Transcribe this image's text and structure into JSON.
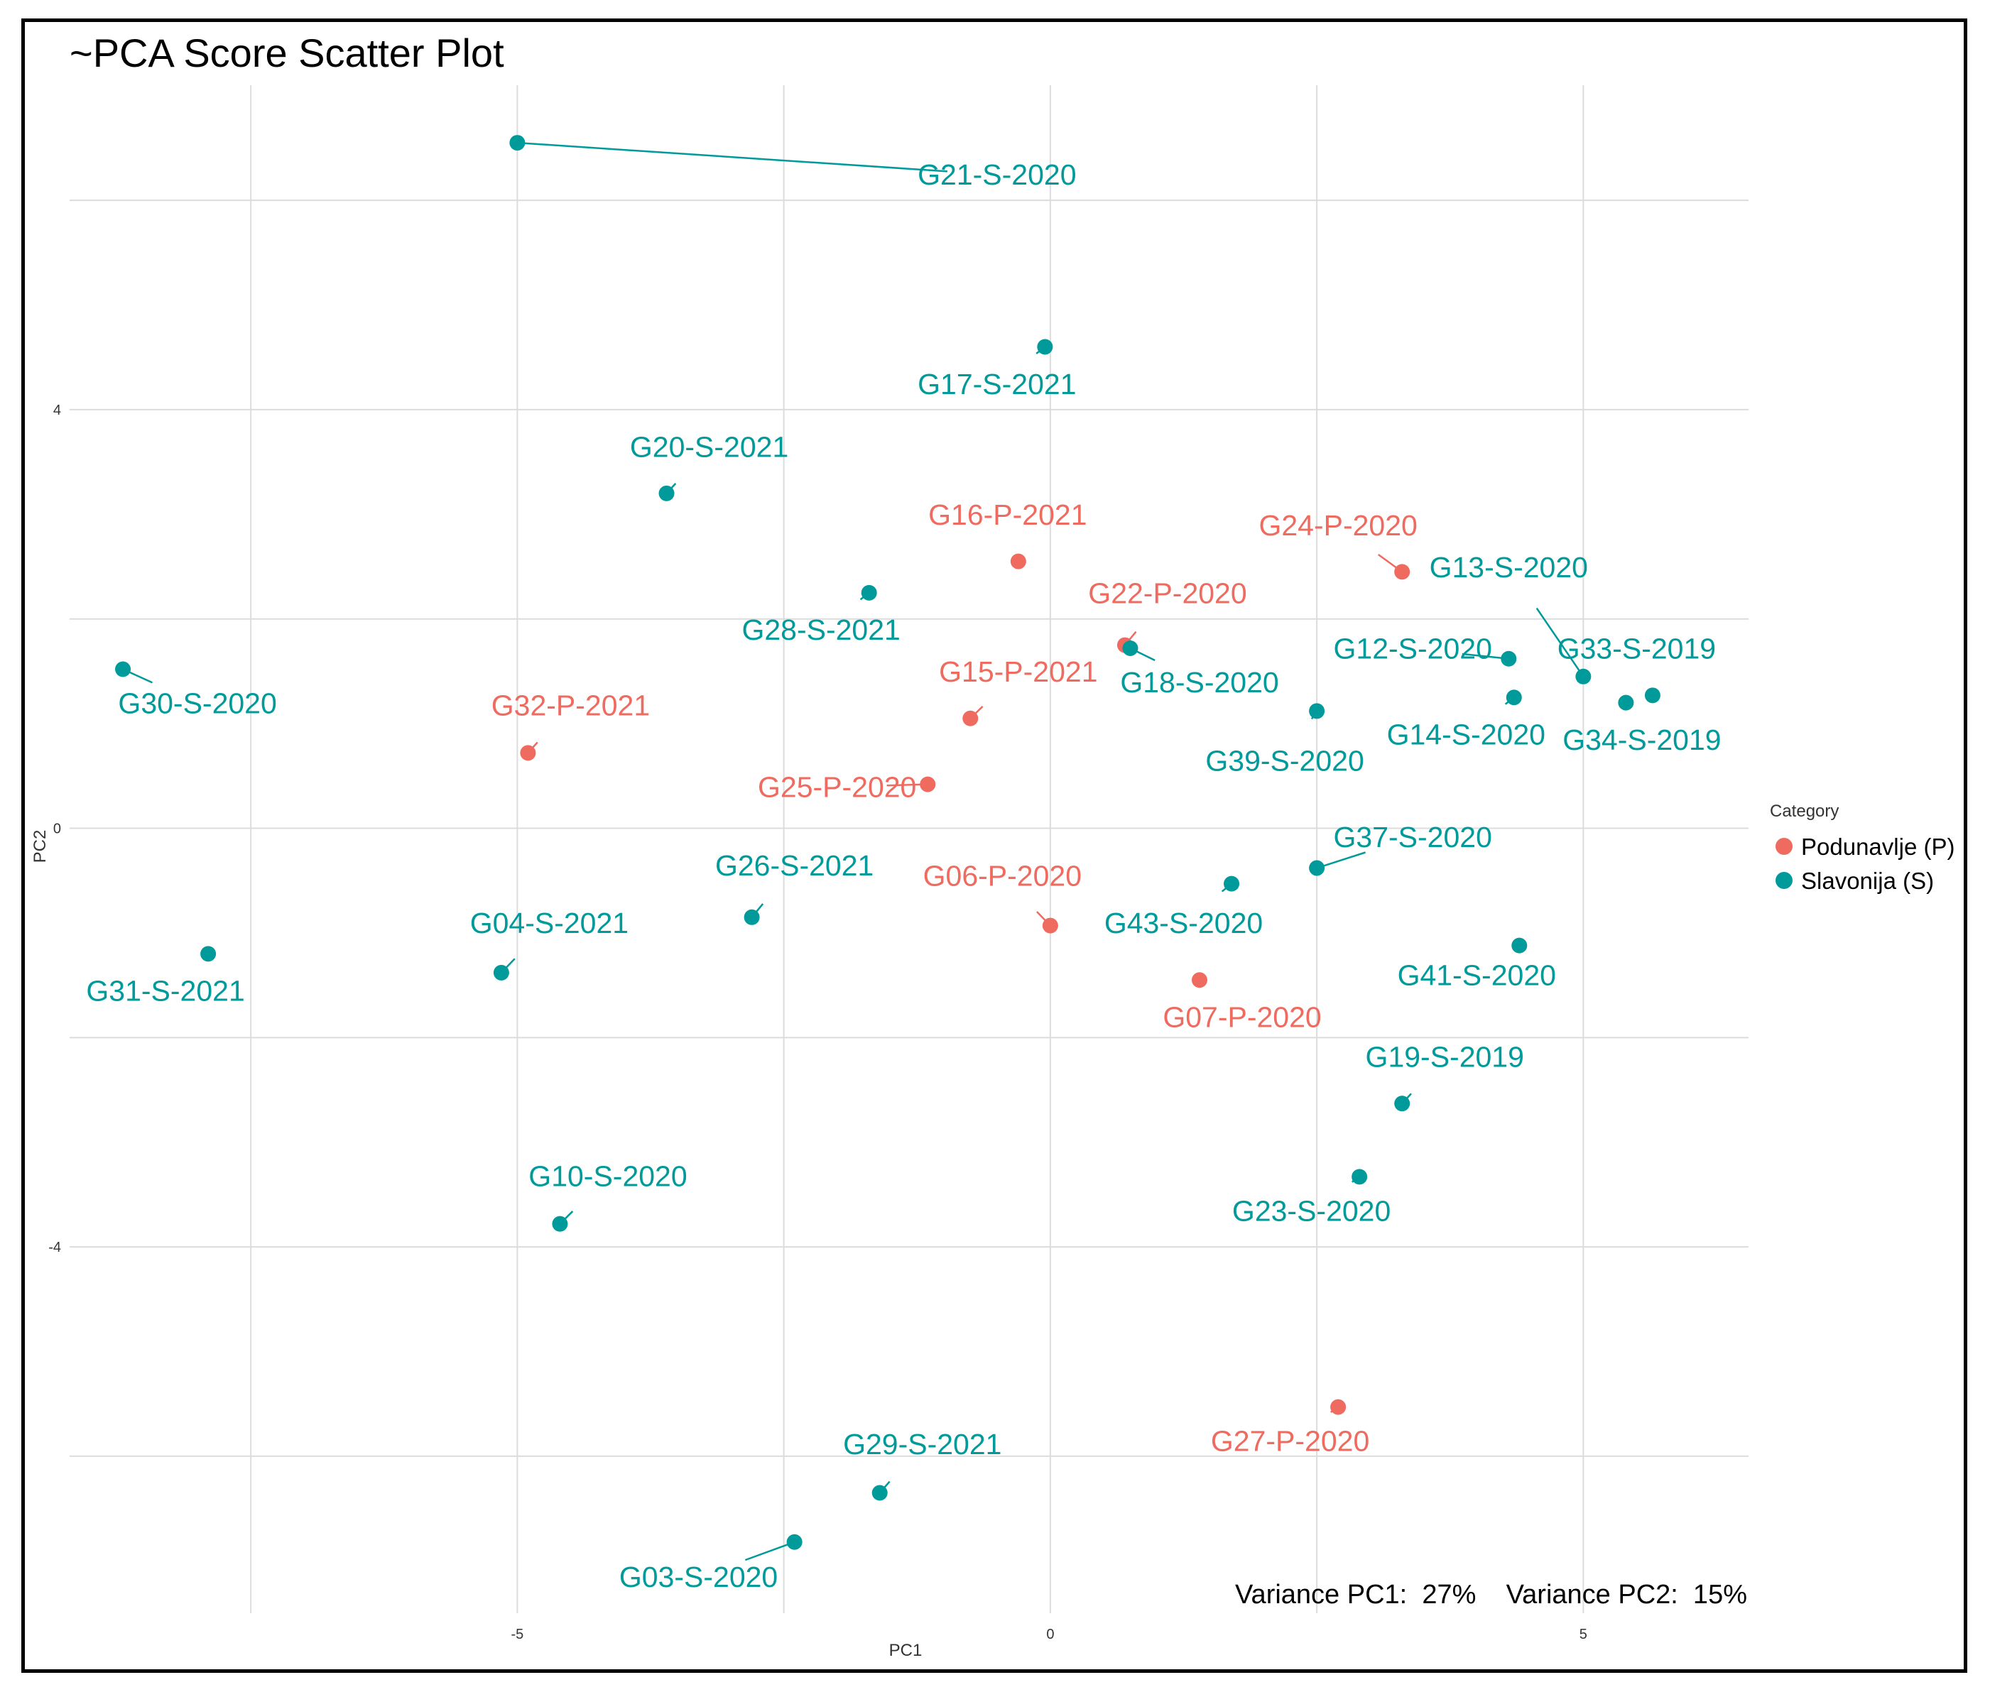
{
  "chart_data": {
    "type": "scatter",
    "title": "~PCA Score Scatter Plot",
    "xlabel": "PC1",
    "ylabel": "PC2",
    "xlim": [
      -9.2,
      6.55
    ],
    "ylim": [
      -7.5,
      7.1
    ],
    "x_ticks": [
      -5,
      0,
      5
    ],
    "y_ticks": [
      4,
      0,
      -4
    ],
    "x_tick_labels": [
      "-5",
      "0",
      "5"
    ],
    "y_tick_labels": [
      "4",
      "0",
      "-4"
    ],
    "grid": true,
    "legend": {
      "title": "Category",
      "position": "right",
      "entries": [
        {
          "name": "Podunavlje (P)",
          "color": "#EF6A5F"
        },
        {
          "name": "Slavonija (S)",
          "color": "#009A9A"
        }
      ]
    },
    "variance_text": "Variance PC1:  27%    Variance PC2:  15%",
    "points": [
      {
        "label": "G21-S-2020",
        "x": -5.0,
        "y": 6.55,
        "cat": 1,
        "lx": -0.5,
        "ly": 6.15
      },
      {
        "label": "G17-S-2021",
        "x": -0.05,
        "y": 4.6,
        "cat": 1,
        "lx": -0.5,
        "ly": 4.15
      },
      {
        "label": "G20-S-2021",
        "x": -3.6,
        "y": 3.2,
        "cat": 1,
        "lx": -3.2,
        "ly": 3.55
      },
      {
        "label": "G16-P-2021",
        "x": -0.3,
        "y": 2.55,
        "cat": 0,
        "lx": -0.4,
        "ly": 2.9
      },
      {
        "label": "G24-P-2020",
        "x": 3.3,
        "y": 2.45,
        "cat": 0,
        "lx": 2.7,
        "ly": 2.8
      },
      {
        "label": "G13-S-2020",
        "x": 5.0,
        "y": 1.45,
        "cat": 1,
        "lx": 4.3,
        "ly": 2.4
      },
      {
        "label": "G28-S-2021",
        "x": -1.7,
        "y": 2.25,
        "cat": 1,
        "lx": -2.15,
        "ly": 1.8
      },
      {
        "label": "G22-P-2020",
        "x": 0.7,
        "y": 1.75,
        "cat": 0,
        "lx": 1.1,
        "ly": 2.15
      },
      {
        "label": "G18-S-2020",
        "x": 0.75,
        "y": 1.72,
        "cat": 1,
        "lx": 1.4,
        "ly": 1.3
      },
      {
        "label": "G12-S-2020",
        "x": 4.3,
        "y": 1.62,
        "cat": 1,
        "lx": 3.4,
        "ly": 1.62
      },
      {
        "label": "G33-S-2019",
        "x": 5.65,
        "y": 1.27,
        "cat": 1,
        "lx": 5.5,
        "ly": 1.62
      },
      {
        "label": "G30-S-2020",
        "x": -8.7,
        "y": 1.52,
        "cat": 1,
        "lx": -8.0,
        "ly": 1.1
      },
      {
        "label": "G15-P-2021",
        "x": -0.75,
        "y": 1.05,
        "cat": 0,
        "lx": -0.3,
        "ly": 1.4
      },
      {
        "label": "G14-S-2020",
        "x": 4.35,
        "y": 1.25,
        "cat": 1,
        "lx": 3.9,
        "ly": 0.8
      },
      {
        "label": "G34-S-2019",
        "x": 5.4,
        "y": 1.2,
        "cat": 1,
        "lx": 5.55,
        "ly": 0.75
      },
      {
        "label": "G39-S-2020",
        "x": 2.5,
        "y": 1.12,
        "cat": 1,
        "lx": 2.2,
        "ly": 0.55
      },
      {
        "label": "G32-P-2021",
        "x": -4.9,
        "y": 0.72,
        "cat": 0,
        "lx": -4.5,
        "ly": 1.08
      },
      {
        "label": "G25-P-2020",
        "x": -1.15,
        "y": 0.42,
        "cat": 0,
        "lx": -2.0,
        "ly": 0.3
      },
      {
        "label": "G37-S-2020",
        "x": 2.5,
        "y": -0.38,
        "cat": 1,
        "lx": 3.4,
        "ly": -0.18
      },
      {
        "label": "G26-S-2021",
        "x": -2.8,
        "y": -0.85,
        "cat": 1,
        "lx": -2.4,
        "ly": -0.45
      },
      {
        "label": "G06-P-2020",
        "x": 0.0,
        "y": -0.93,
        "cat": 0,
        "lx": -0.45,
        "ly": -0.55
      },
      {
        "label": "G43-S-2020",
        "x": 1.7,
        "y": -0.53,
        "cat": 1,
        "lx": 1.25,
        "ly": -1.0
      },
      {
        "label": "G41-S-2020",
        "x": 4.4,
        "y": -1.12,
        "cat": 1,
        "lx": 4.0,
        "ly": -1.5
      },
      {
        "label": "G04-S-2021",
        "x": -5.15,
        "y": -1.38,
        "cat": 1,
        "lx": -4.7,
        "ly": -1.0
      },
      {
        "label": "G31-S-2021",
        "x": -7.9,
        "y": -1.2,
        "cat": 1,
        "lx": -8.3,
        "ly": -1.65
      },
      {
        "label": "G07-P-2020",
        "x": 1.4,
        "y": -1.45,
        "cat": 0,
        "lx": 1.8,
        "ly": -1.9
      },
      {
        "label": "G19-S-2019",
        "x": 3.3,
        "y": -2.63,
        "cat": 1,
        "lx": 3.7,
        "ly": -2.28
      },
      {
        "label": "G23-S-2020",
        "x": 2.9,
        "y": -3.33,
        "cat": 1,
        "lx": 2.45,
        "ly": -3.75
      },
      {
        "label": "G10-S-2020",
        "x": -4.6,
        "y": -3.78,
        "cat": 1,
        "lx": -4.15,
        "ly": -3.42
      },
      {
        "label": "G27-P-2020",
        "x": 2.7,
        "y": -5.53,
        "cat": 0,
        "lx": 2.25,
        "ly": -5.95
      },
      {
        "label": "G29-S-2021",
        "x": -1.6,
        "y": -6.35,
        "cat": 1,
        "lx": -1.2,
        "ly": -5.98
      },
      {
        "label": "G03-S-2020",
        "x": -2.4,
        "y": -6.82,
        "cat": 1,
        "lx": -3.3,
        "ly": -7.25
      }
    ]
  }
}
